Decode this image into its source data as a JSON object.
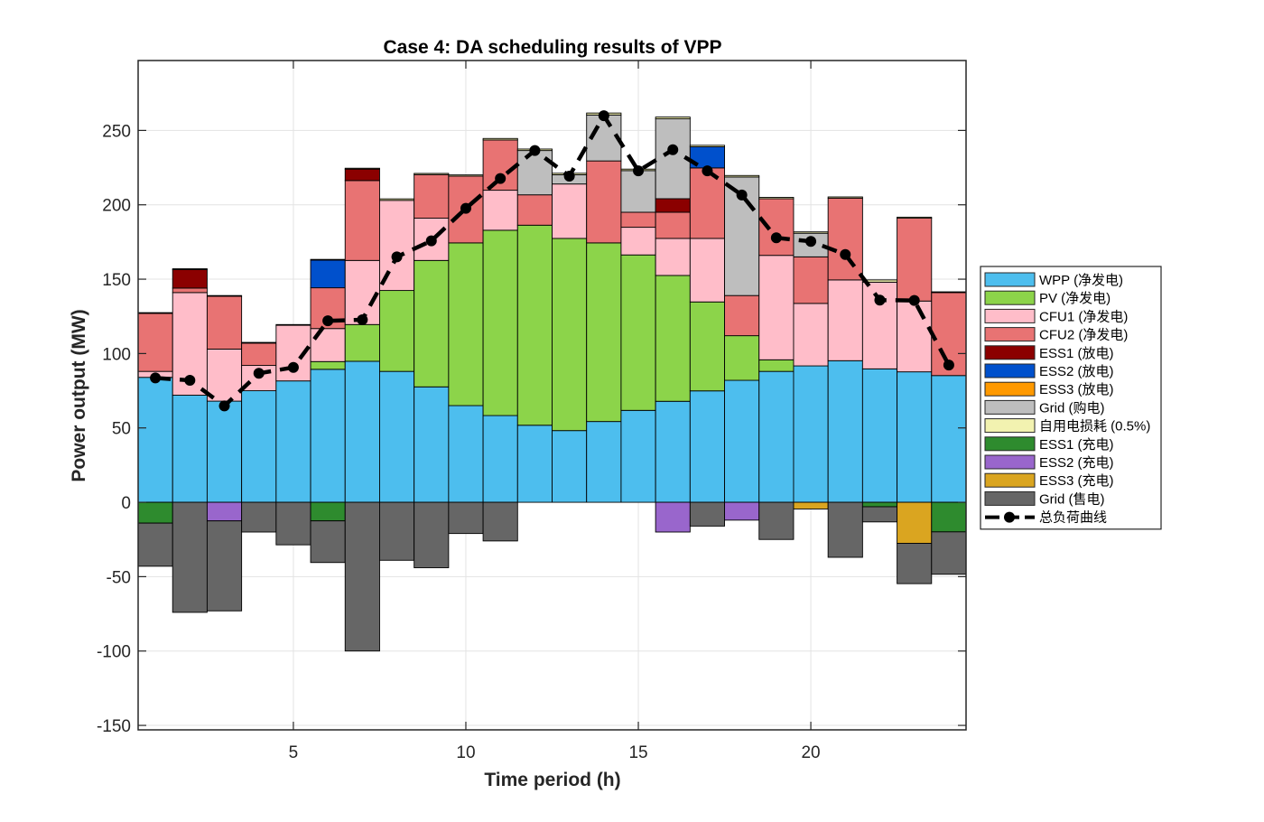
{
  "chart_data": {
    "type": "bar",
    "stacked": true,
    "title": "Case 4: DA scheduling results of VPP",
    "xlabel": "Time period (h)",
    "ylabel": "Power output (MW)",
    "xlim": [
      0.5,
      24.5
    ],
    "ylim": [
      -153,
      297
    ],
    "xticks": [
      5,
      10,
      15,
      20
    ],
    "yticks": [
      -150,
      -100,
      -50,
      0,
      50,
      100,
      150,
      200,
      250
    ],
    "grid": true,
    "legend_position": "right-outside",
    "x": [
      1,
      2,
      3,
      4,
      5,
      6,
      7,
      8,
      9,
      10,
      11,
      12,
      13,
      14,
      15,
      16,
      17,
      18,
      19,
      20,
      21,
      22,
      23,
      24
    ],
    "series": [
      {
        "name": "WPP (净发电)",
        "color": "#4DBEEE",
        "values": [
          84,
          72,
          68,
          75,
          81.6,
          89.4,
          94.8,
          88,
          77.6,
          65,
          58.3,
          51.8,
          48.2,
          54.3,
          61.8,
          67.9,
          74.9,
          82,
          88,
          91.7,
          95.2,
          89.7,
          87.7,
          85.2
        ]
      },
      {
        "name": "PV (净发电)",
        "color": "#8CD44A",
        "values": [
          0,
          0,
          0,
          0,
          0,
          5.2,
          24.7,
          54.4,
          85,
          109.4,
          124.6,
          134.5,
          129.2,
          120.1,
          104.5,
          84.6,
          59.8,
          30,
          7.8,
          0,
          0,
          0,
          0,
          0
        ]
      },
      {
        "name": "CFU1 (净发电)",
        "color": "#FFBDC9",
        "values": [
          4,
          69,
          35,
          17,
          37.4,
          22.2,
          43.1,
          60.6,
          28.4,
          0,
          26.9,
          0,
          36.6,
          0,
          18.6,
          24.9,
          42.7,
          0,
          70.2,
          42,
          54.3,
          58.3,
          47.6,
          0
        ]
      },
      {
        "name": "CFU2 (净发电)",
        "color": "#E87373",
        "values": [
          39,
          3,
          35.5,
          15,
          0,
          27.4,
          53.7,
          0,
          29.3,
          44.9,
          33.8,
          20.4,
          0,
          55.1,
          10.1,
          17.6,
          47.4,
          27,
          38.1,
          31.3,
          55,
          0,
          55.7,
          55.8
        ]
      },
      {
        "name": "ESS1 (放电)",
        "color": "#8B0000",
        "values": [
          0,
          12.5,
          0,
          0,
          0,
          0,
          7.7,
          0,
          0,
          0,
          0,
          0,
          0,
          0,
          0,
          9.1,
          0,
          0,
          0,
          0,
          0,
          0,
          0,
          0
        ]
      },
      {
        "name": "ESS2 (放电)",
        "color": "#0050CC",
        "values": [
          0,
          0,
          0,
          0,
          0,
          18.6,
          0,
          0,
          0,
          0,
          0,
          0,
          0,
          0,
          0,
          0,
          14.2,
          0,
          0,
          0,
          0,
          0,
          0,
          0
        ]
      },
      {
        "name": "ESS3 (放电)",
        "color": "#FF9900",
        "values": [
          0,
          0,
          0,
          0,
          0,
          0,
          0,
          0,
          0,
          0,
          0,
          0,
          0,
          0,
          0,
          0,
          0,
          0,
          0,
          0,
          0,
          0,
          0,
          0
        ]
      },
      {
        "name": "Grid (购电)",
        "color": "#BEBEBE",
        "values": [
          0,
          0,
          0,
          0,
          0,
          0,
          0,
          0,
          0,
          0,
          0,
          29.8,
          6.2,
          30.9,
          28,
          53.7,
          0,
          79.7,
          0,
          15.9,
          0,
          0,
          0,
          0
        ]
      },
      {
        "name": "自用电损耗 (0.5%)",
        "color": "#F2F2B0",
        "values": [
          0.5,
          0.5,
          0.5,
          0.5,
          0.5,
          0.5,
          0.6,
          1,
          0.8,
          0.8,
          1,
          1,
          1,
          1.3,
          1,
          1.2,
          1,
          1,
          0.9,
          0.9,
          0.8,
          1.5,
          0.7,
          0.5
        ]
      },
      {
        "name": "ESS1 (充电)",
        "color": "#2E8B2E",
        "values": [
          -14,
          0,
          0,
          0,
          0,
          -12.5,
          0,
          0,
          0,
          0,
          0,
          0,
          0,
          0,
          0,
          0,
          0,
          0,
          0,
          0,
          0,
          -3,
          0,
          -19.9
        ]
      },
      {
        "name": "ESS2 (充电)",
        "color": "#9966CC",
        "values": [
          0,
          0,
          -12.5,
          0,
          0,
          0,
          0,
          0,
          0,
          0,
          0,
          0,
          0,
          0,
          0,
          -20,
          0,
          -12,
          0,
          0,
          0,
          0,
          0,
          0
        ]
      },
      {
        "name": "ESS3 (充电)",
        "color": "#DAA520",
        "values": [
          0,
          0,
          0,
          0,
          0,
          0,
          0,
          0,
          0,
          0,
          0,
          0,
          0,
          0,
          0,
          0,
          0,
          0,
          0,
          -4.5,
          0,
          0,
          -27.6,
          0
        ]
      },
      {
        "name": "Grid (售电)",
        "color": "#666666",
        "values": [
          -29,
          -74,
          -60.5,
          -20,
          -28.6,
          -28,
          -100,
          -39,
          -44,
          -21,
          -26,
          0,
          0,
          0,
          0,
          0,
          -16,
          0,
          -25,
          0,
          -37,
          -10.2,
          -27.1,
          -28.5
        ]
      }
    ],
    "line_series": {
      "name": "总负荷曲线",
      "color": "#000000",
      "style": "dashed-with-markers",
      "values": [
        83.6,
        82,
        64.8,
        86.7,
        90.7,
        122,
        122.7,
        165,
        175.8,
        197.6,
        217.7,
        236.5,
        219.3,
        259.9,
        222.8,
        237,
        222.8,
        206.6,
        177.8,
        175.4,
        166.6,
        135.9,
        135.7,
        92.3
      ]
    }
  }
}
